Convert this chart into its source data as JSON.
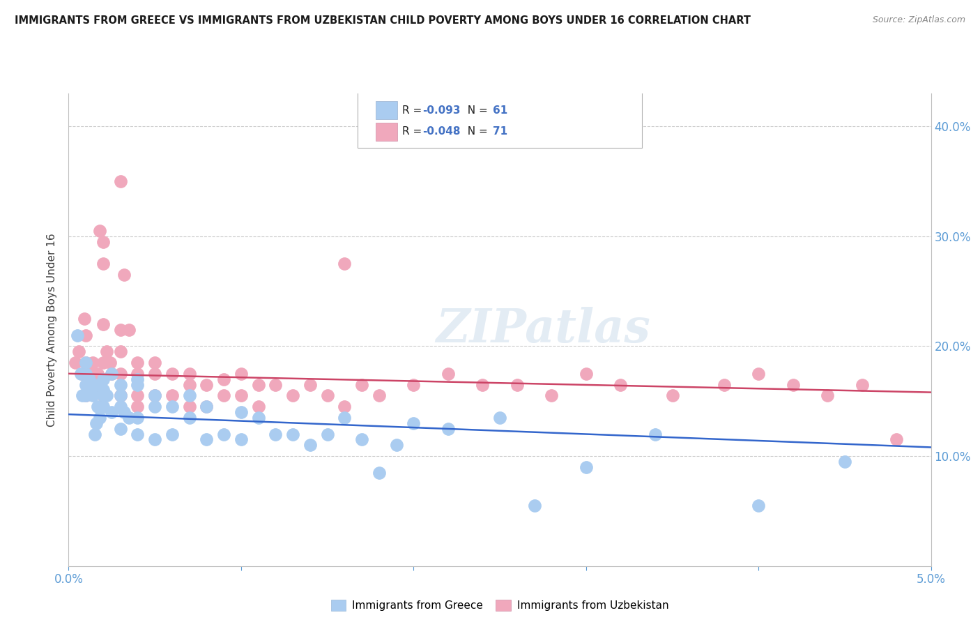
{
  "title": "IMMIGRANTS FROM GREECE VS IMMIGRANTS FROM UZBEKISTAN CHILD POVERTY AMONG BOYS UNDER 16 CORRELATION CHART",
  "source": "Source: ZipAtlas.com",
  "ylabel": "Child Poverty Among Boys Under 16",
  "y_ticks": [
    0.0,
    0.1,
    0.2,
    0.3,
    0.4
  ],
  "y_tick_labels": [
    "",
    "10.0%",
    "20.0%",
    "30.0%",
    "40.0%"
  ],
  "x_lim": [
    0.0,
    0.05
  ],
  "y_lim": [
    0.0,
    0.43
  ],
  "series": [
    {
      "name": "Immigrants from Greece",
      "R": -0.093,
      "N": 61,
      "color": "#aaccf0",
      "trend_color": "#3366cc",
      "trend_y0": 0.138,
      "trend_y1": 0.108
    },
    {
      "name": "Immigrants from Uzbekistan",
      "R": -0.048,
      "N": 71,
      "color": "#f0a8bc",
      "trend_color": "#cc4466",
      "trend_y0": 0.175,
      "trend_y1": 0.158
    }
  ],
  "watermark": "ZIPatlas",
  "greece_x": [
    0.0005,
    0.0007,
    0.0008,
    0.001,
    0.001,
    0.001,
    0.001,
    0.0012,
    0.0013,
    0.0014,
    0.0015,
    0.0015,
    0.0016,
    0.0017,
    0.0018,
    0.002,
    0.002,
    0.002,
    0.002,
    0.0022,
    0.0025,
    0.0025,
    0.003,
    0.003,
    0.003,
    0.003,
    0.0032,
    0.0035,
    0.004,
    0.004,
    0.004,
    0.004,
    0.005,
    0.005,
    0.005,
    0.006,
    0.006,
    0.007,
    0.007,
    0.008,
    0.008,
    0.009,
    0.01,
    0.01,
    0.011,
    0.012,
    0.013,
    0.014,
    0.015,
    0.016,
    0.017,
    0.018,
    0.019,
    0.02,
    0.022,
    0.025,
    0.027,
    0.03,
    0.034,
    0.04,
    0.045
  ],
  "greece_y": [
    0.21,
    0.175,
    0.155,
    0.185,
    0.175,
    0.165,
    0.155,
    0.17,
    0.16,
    0.155,
    0.165,
    0.12,
    0.13,
    0.145,
    0.135,
    0.17,
    0.16,
    0.155,
    0.145,
    0.155,
    0.175,
    0.14,
    0.165,
    0.155,
    0.145,
    0.125,
    0.14,
    0.135,
    0.17,
    0.165,
    0.135,
    0.12,
    0.155,
    0.145,
    0.115,
    0.145,
    0.12,
    0.155,
    0.135,
    0.145,
    0.115,
    0.12,
    0.14,
    0.115,
    0.135,
    0.12,
    0.12,
    0.11,
    0.12,
    0.135,
    0.115,
    0.085,
    0.11,
    0.13,
    0.125,
    0.135,
    0.055,
    0.09,
    0.12,
    0.055,
    0.095
  ],
  "uzbek_x": [
    0.0004,
    0.0006,
    0.0008,
    0.0009,
    0.001,
    0.001,
    0.001,
    0.0012,
    0.0013,
    0.0014,
    0.0015,
    0.0016,
    0.0017,
    0.0018,
    0.002,
    0.002,
    0.002,
    0.002,
    0.002,
    0.0022,
    0.0024,
    0.0025,
    0.003,
    0.003,
    0.003,
    0.003,
    0.003,
    0.0032,
    0.0035,
    0.004,
    0.004,
    0.004,
    0.004,
    0.005,
    0.005,
    0.005,
    0.006,
    0.006,
    0.007,
    0.007,
    0.007,
    0.008,
    0.008,
    0.009,
    0.009,
    0.01,
    0.01,
    0.011,
    0.011,
    0.012,
    0.013,
    0.014,
    0.015,
    0.016,
    0.016,
    0.017,
    0.018,
    0.02,
    0.022,
    0.024,
    0.026,
    0.028,
    0.03,
    0.032,
    0.035,
    0.038,
    0.04,
    0.042,
    0.044,
    0.046,
    0.048
  ],
  "uzbek_y": [
    0.185,
    0.195,
    0.175,
    0.225,
    0.21,
    0.185,
    0.155,
    0.175,
    0.165,
    0.185,
    0.175,
    0.165,
    0.175,
    0.305,
    0.295,
    0.275,
    0.22,
    0.185,
    0.155,
    0.195,
    0.185,
    0.175,
    0.35,
    0.215,
    0.195,
    0.175,
    0.155,
    0.265,
    0.215,
    0.185,
    0.175,
    0.155,
    0.145,
    0.185,
    0.175,
    0.155,
    0.175,
    0.155,
    0.175,
    0.165,
    0.145,
    0.165,
    0.145,
    0.17,
    0.155,
    0.175,
    0.155,
    0.165,
    0.145,
    0.165,
    0.155,
    0.165,
    0.155,
    0.145,
    0.275,
    0.165,
    0.155,
    0.165,
    0.175,
    0.165,
    0.165,
    0.155,
    0.175,
    0.165,
    0.155,
    0.165,
    0.175,
    0.165,
    0.155,
    0.165,
    0.115
  ]
}
